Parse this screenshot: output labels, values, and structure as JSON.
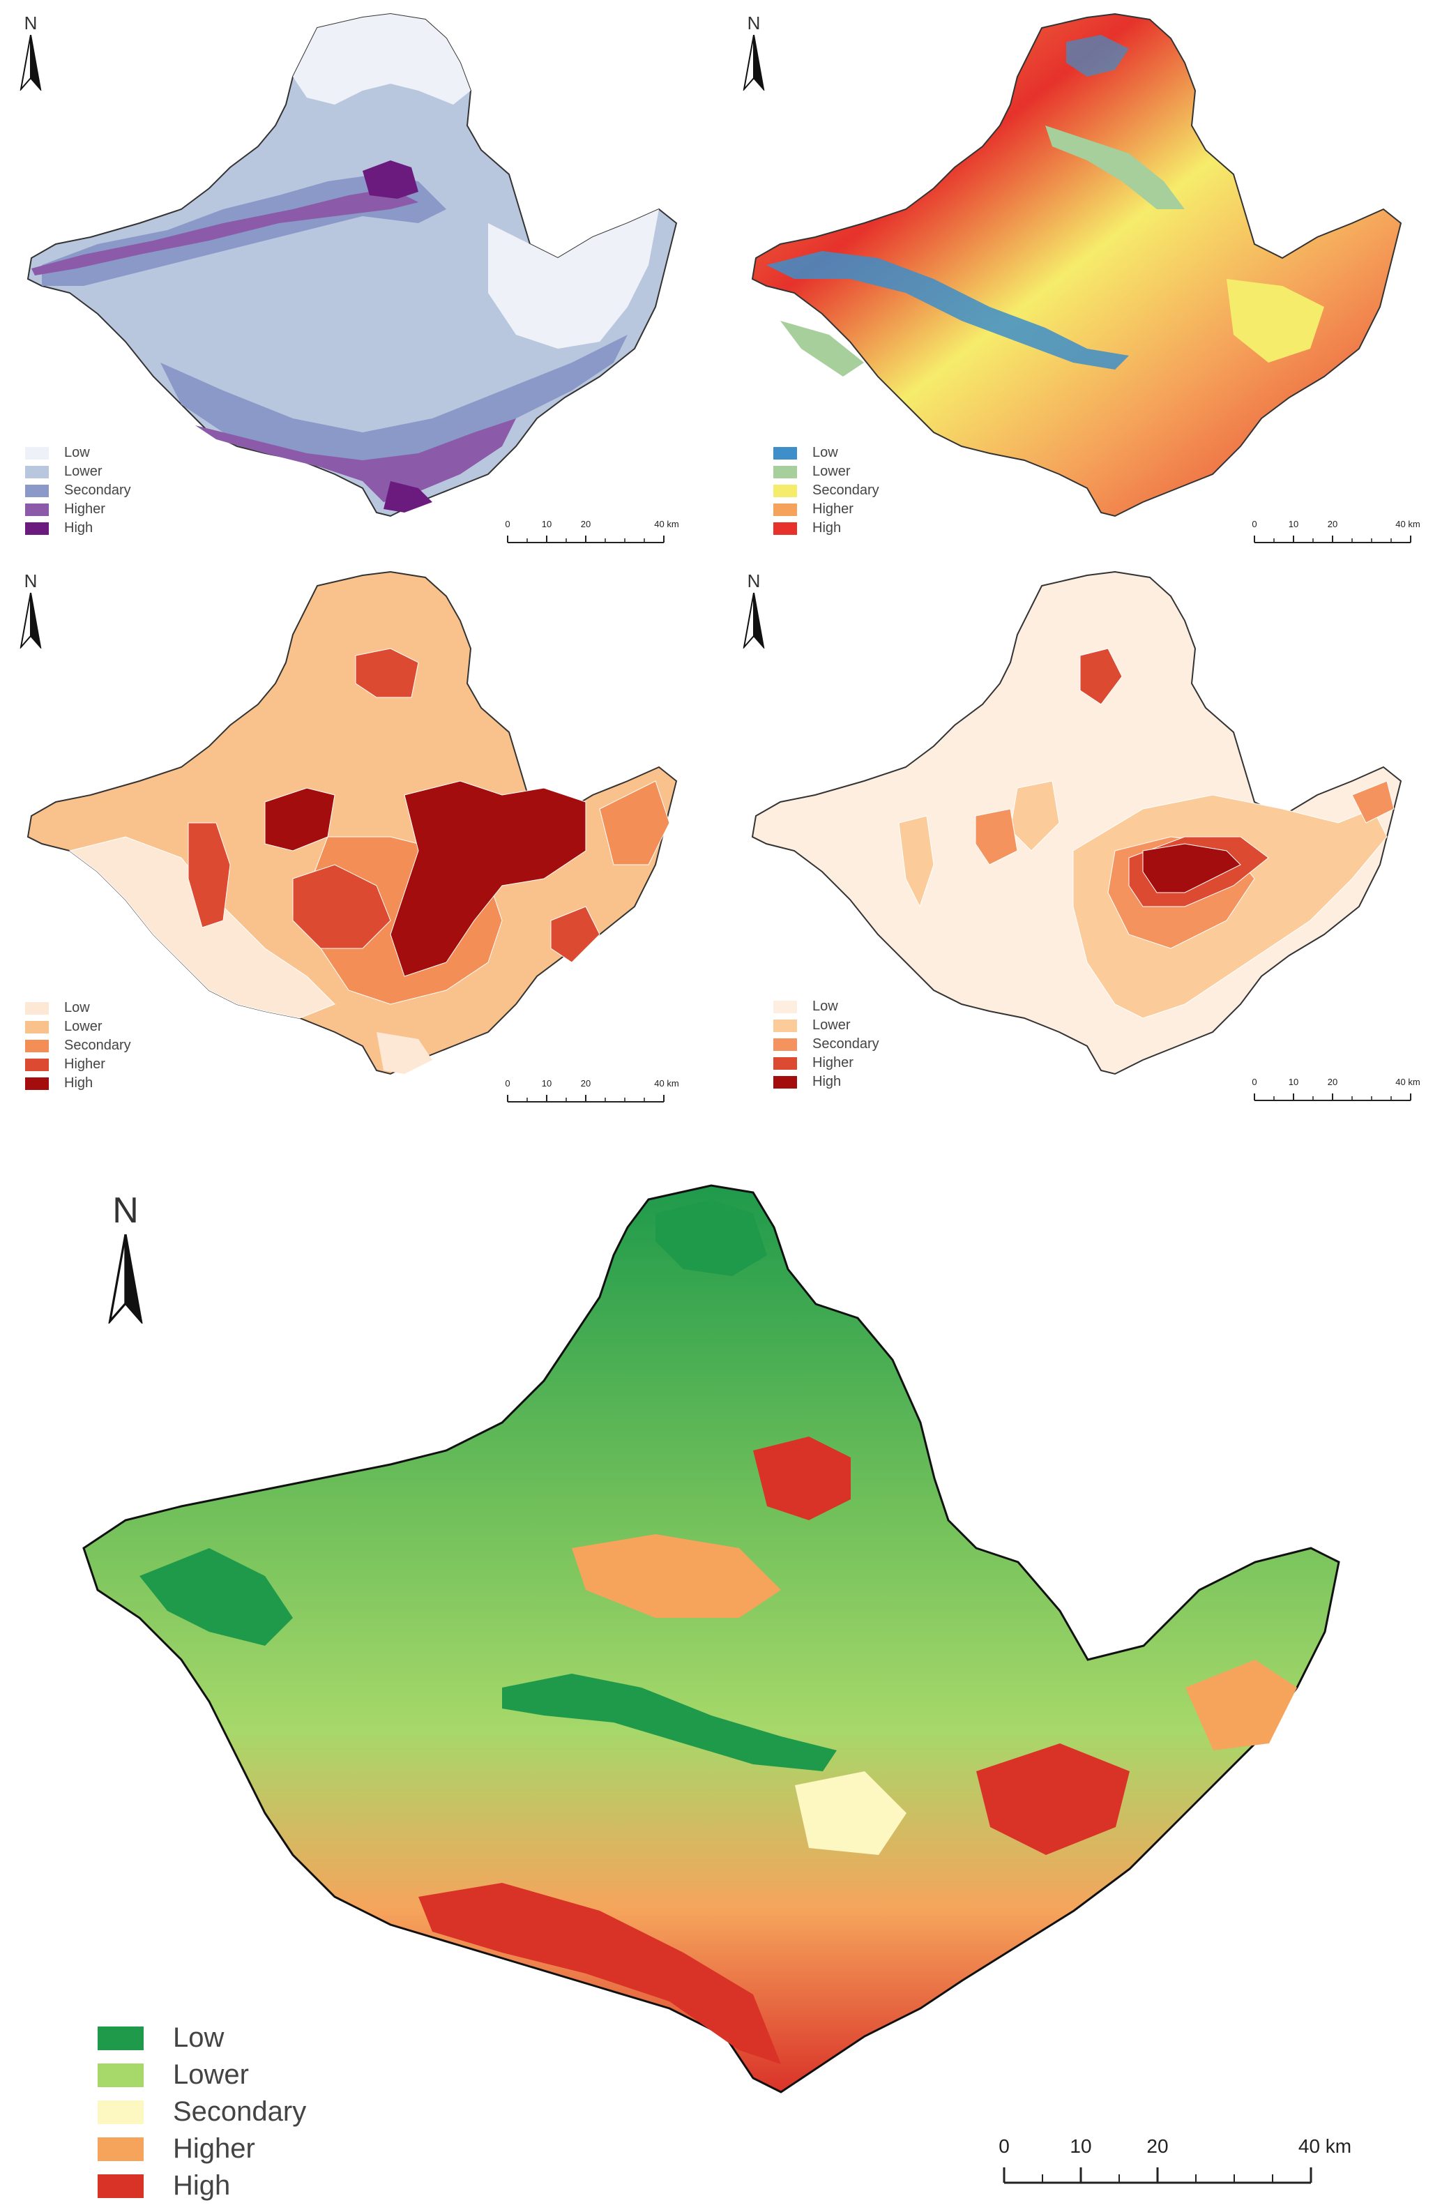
{
  "panels": [
    {
      "id": "elevation",
      "north_label": "N",
      "legend": [
        {
          "label": "Low",
          "color": "#eef2f8"
        },
        {
          "label": "Lower",
          "color": "#b9c7de"
        },
        {
          "label": "Secondary",
          "color": "#8a99c8"
        },
        {
          "label": "Higher",
          "color": "#8b5aa8"
        },
        {
          "label": "High",
          "color": "#6b1a7e"
        }
      ],
      "scale": {
        "ticks": [
          "0",
          "10",
          "20",
          "40 km"
        ]
      }
    },
    {
      "id": "slope",
      "north_label": "N",
      "legend": [
        {
          "label": "Low",
          "color": "#3d8ec9"
        },
        {
          "label": "Lower",
          "color": "#a6cf9b"
        },
        {
          "label": "Secondary",
          "color": "#f6ec6b"
        },
        {
          "label": "Higher",
          "color": "#f5a35a"
        },
        {
          "label": "High",
          "color": "#e6322b"
        }
      ],
      "scale": {
        "ticks": [
          "0",
          "10",
          "20",
          "40 km"
        ]
      }
    },
    {
      "id": "population",
      "north_label": "N",
      "legend": [
        {
          "label": "Low",
          "color": "#fde8d6"
        },
        {
          "label": "Lower",
          "color": "#f9c28c"
        },
        {
          "label": "Secondary",
          "color": "#f28e56"
        },
        {
          "label": "Higher",
          "color": "#dc4a32"
        },
        {
          "label": "High",
          "color": "#a30d0d"
        }
      ],
      "scale": {
        "ticks": [
          "0",
          "10",
          "20",
          "40 km"
        ]
      }
    },
    {
      "id": "economy",
      "north_label": "N",
      "legend": [
        {
          "label": "Low",
          "color": "#fdeee0"
        },
        {
          "label": "Lower",
          "color": "#fbcb9a"
        },
        {
          "label": "Secondary",
          "color": "#f5935e"
        },
        {
          "label": "Higher",
          "color": "#dc4a32"
        },
        {
          "label": "High",
          "color": "#a30d0d"
        }
      ],
      "scale": {
        "ticks": [
          "0",
          "10",
          "20",
          "40 km"
        ]
      }
    },
    {
      "id": "composite",
      "north_label": "N",
      "legend": [
        {
          "label": "Low",
          "color": "#1f9a4b"
        },
        {
          "label": "Lower",
          "color": "#a6d86a"
        },
        {
          "label": "Secondary",
          "color": "#fdf8c2"
        },
        {
          "label": "Higher",
          "color": "#f6a45c"
        },
        {
          "label": "High",
          "color": "#d93328"
        }
      ],
      "scale": {
        "ticks": [
          "0",
          "10",
          "20",
          "40 km"
        ]
      }
    }
  ]
}
